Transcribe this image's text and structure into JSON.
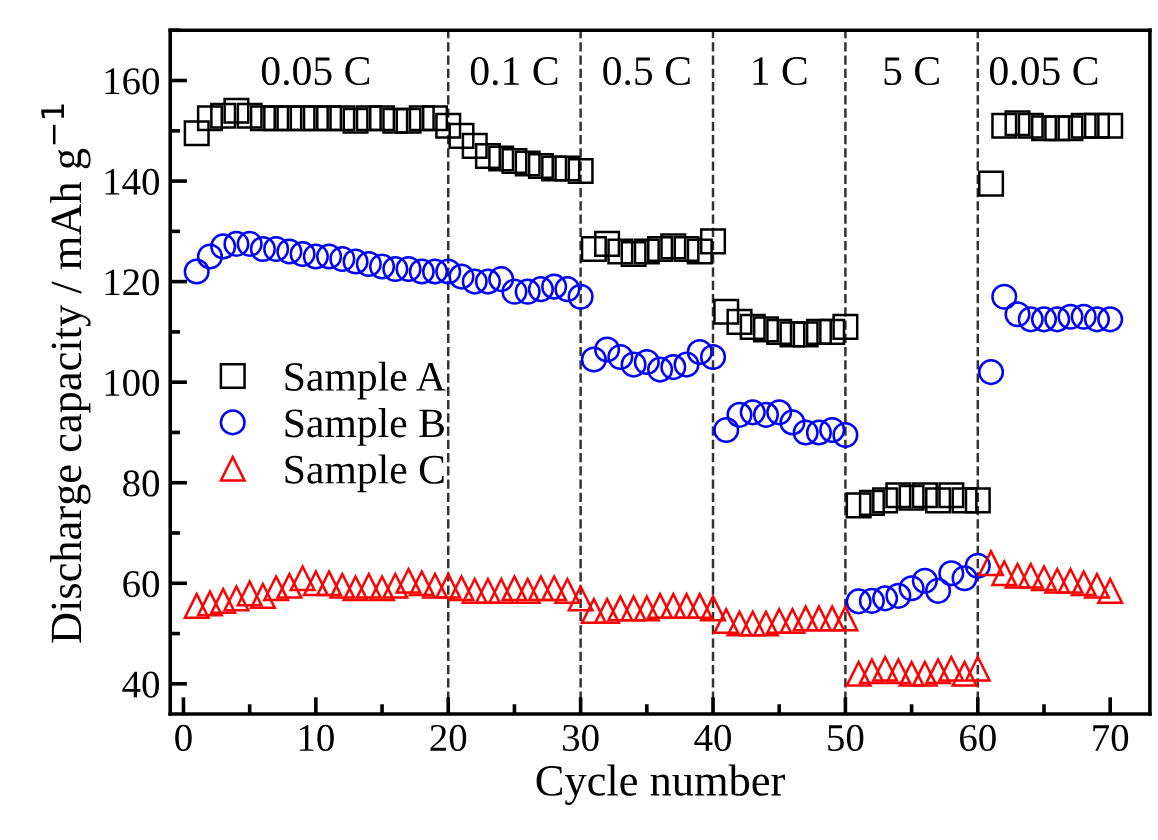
{
  "chart_data": {
    "type": "scatter",
    "xlabel": "Cycle number",
    "ylabel": "Discharge capacity / mAh g$^{−1}$",
    "x": [
      1,
      2,
      3,
      4,
      5,
      6,
      7,
      8,
      9,
      10,
      11,
      12,
      13,
      14,
      15,
      16,
      17,
      18,
      19,
      20,
      21,
      22,
      23,
      24,
      25,
      26,
      27,
      28,
      29,
      30,
      31,
      32,
      33,
      34,
      35,
      36,
      37,
      38,
      39,
      40,
      41,
      42,
      43,
      44,
      45,
      46,
      47,
      48,
      49,
      50,
      51,
      52,
      53,
      54,
      55,
      56,
      57,
      58,
      59,
      60,
      61,
      62,
      63,
      64,
      65,
      66,
      67,
      68,
      69,
      70
    ],
    "series": [
      {
        "name": "Sample A",
        "color": "#000000",
        "marker": "square",
        "values": [
          149.5,
          152.5,
          153,
          154,
          153,
          152.5,
          152.5,
          152.5,
          152.5,
          152.5,
          152.5,
          152.5,
          152,
          152.5,
          152.5,
          152,
          152,
          152.5,
          152.5,
          151,
          149,
          147,
          145,
          144.5,
          144,
          143.5,
          143,
          142.5,
          142.5,
          142,
          126.5,
          127.5,
          126,
          125.5,
          126,
          126.5,
          127,
          126.5,
          126,
          128,
          114,
          112,
          111,
          110.5,
          110,
          109.5,
          109.5,
          110,
          110,
          111,
          75.5,
          76,
          76.5,
          77.5,
          77,
          77.5,
          76.5,
          77.5,
          76.5,
          76.5,
          139.5,
          151,
          151.5,
          151,
          150.5,
          150.5,
          150.5,
          151,
          151,
          151
        ]
      },
      {
        "name": "Sample B",
        "color": "#0000ff",
        "marker": "circle",
        "values": [
          122,
          125,
          127,
          127.5,
          127.5,
          126.5,
          126.5,
          126,
          125.5,
          125,
          125,
          124.5,
          124,
          123.5,
          123,
          122.5,
          122.5,
          122,
          122,
          122,
          121,
          120,
          120,
          120.5,
          118,
          118,
          118.5,
          119,
          118.5,
          117,
          104.5,
          106.5,
          105,
          103.5,
          104,
          102.5,
          103,
          103.5,
          106,
          105,
          90.5,
          93.5,
          94,
          93.5,
          94,
          92,
          90,
          90,
          90.5,
          89.5,
          56.4,
          56.5,
          57,
          57.5,
          59,
          60.5,
          58.5,
          62,
          61,
          63.5,
          102,
          117,
          113.5,
          112.5,
          112.5,
          112.5,
          113,
          113,
          112.5,
          112.5
        ]
      },
      {
        "name": "Sample C",
        "color": "#ff0000",
        "marker": "triangle",
        "values": [
          55.5,
          56,
          56.5,
          57,
          58,
          57.5,
          59,
          59.5,
          61,
          60,
          60,
          59.5,
          59,
          59.5,
          59,
          59.5,
          60.5,
          60,
          59.5,
          59.5,
          59,
          58.5,
          58.5,
          58.5,
          59,
          58.5,
          59,
          59,
          58.5,
          57,
          54.5,
          54.5,
          55,
          55,
          55,
          55.5,
          55.5,
          55.5,
          55.5,
          55,
          52.5,
          52,
          52,
          52,
          52.5,
          52.5,
          53,
          53,
          53,
          53,
          42,
          42.5,
          43,
          42.5,
          42,
          42,
          42.5,
          43,
          42,
          43,
          64,
          62,
          61.5,
          61.5,
          61,
          60.5,
          60.5,
          60,
          59.5,
          58.5
        ]
      }
    ],
    "xlim": [
      -1,
      73
    ],
    "xticks": [
      0,
      10,
      20,
      30,
      40,
      50,
      60,
      70
    ],
    "ylim": [
      34,
      170
    ],
    "yticks": [
      40,
      60,
      80,
      100,
      120,
      140,
      160
    ],
    "ref_lines": [
      {
        "axis": "x",
        "value": 20,
        "color": "#333333",
        "line_style": "dashed"
      },
      {
        "axis": "x",
        "value": 30,
        "color": "#333333",
        "line_style": "dashed"
      },
      {
        "axis": "x",
        "value": 40,
        "color": "#333333",
        "line_style": "dashed"
      },
      {
        "axis": "x",
        "value": 50,
        "color": "#333333",
        "line_style": "dashed"
      },
      {
        "axis": "x",
        "value": 60,
        "color": "#333333",
        "line_style": "dashed"
      }
    ],
    "annotations": [
      "0.05 C",
      "0.1 C",
      "0.5 C",
      "1 C",
      "5 C",
      "0.05 C"
    ],
    "legend": "left",
    "grid": false
  }
}
